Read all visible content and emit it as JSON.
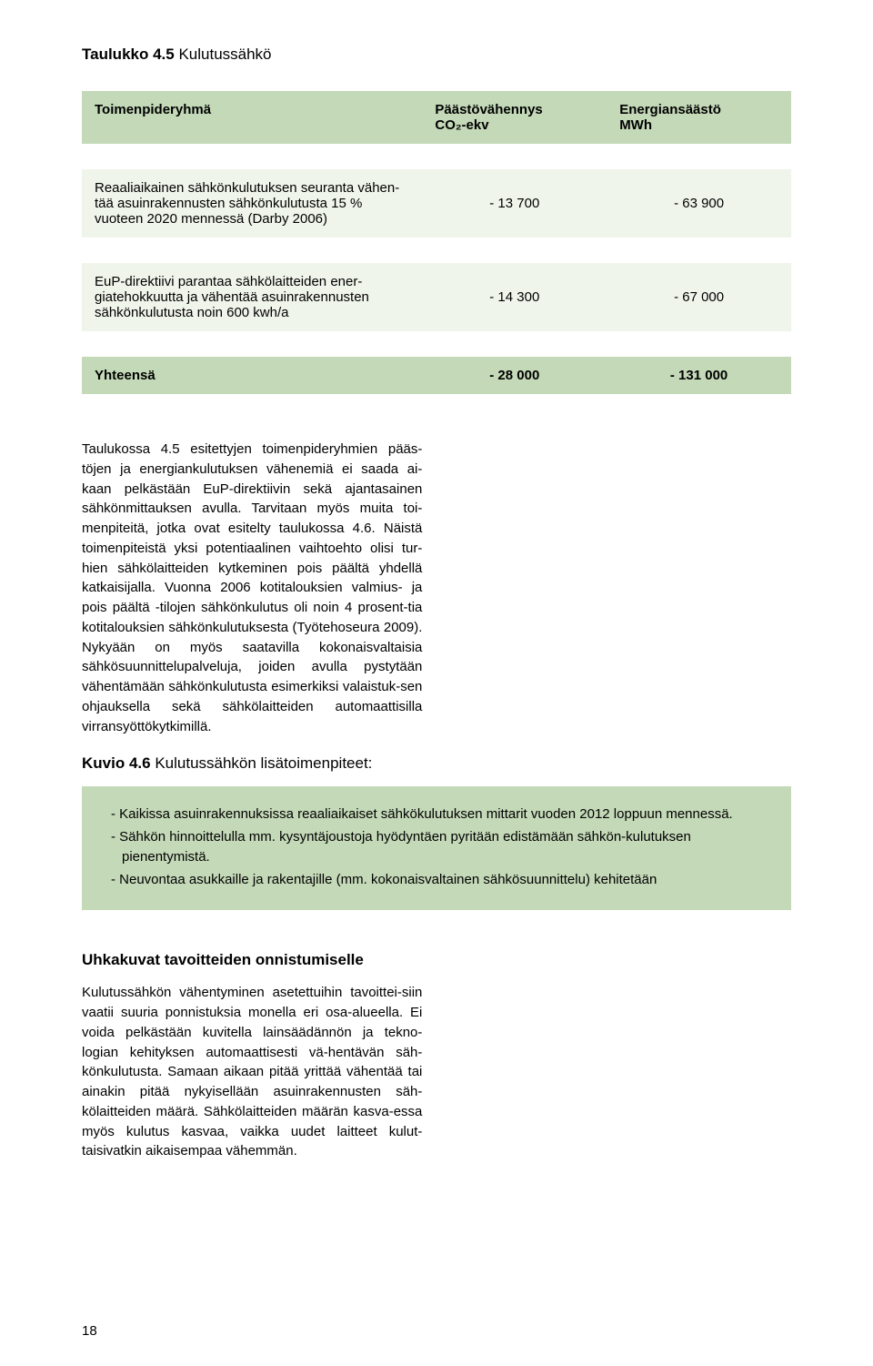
{
  "table_heading": {
    "label": "Taulukko 4.5",
    "title": " Kulutussähkö"
  },
  "columns": [
    "Toimenpideryhmä",
    "Päästövähennys\nCO₂-ekv",
    "Energiansäästö\nMWh"
  ],
  "rows": [
    {
      "label": "Reaaliaikainen sähkönkulutuksen seuranta vähen-tää asuinrakennusten sähkönkulutusta 15 % vuoteen 2020 mennessä (Darby 2006)",
      "c1": "- 13 700",
      "c2": "- 63 900"
    },
    {
      "label": "EuP-direktiivi parantaa sähkölaitteiden ener-giatehokkuutta ja vähentää asuinrakennusten sähkönkulutusta  noin 600 kwh/a",
      "c1": "- 14 300",
      "c2": "- 67 000"
    }
  ],
  "total": {
    "label": "Yhteensä",
    "c1": "- 28 000",
    "c2": "- 131 000"
  },
  "body_para1": "Taulukossa 4.5 esitettyjen toimenpideryhmien pääs-töjen ja energiankulutuksen vähenemiä ei saada ai-kaan pelkästään EuP-direktiivin sekä ajantasainen sähkönmittauksen avulla. Tarvitaan myös muita toi-menpiteitä, jotka ovat esitelty taulukossa 4.6. Näistä toimenpiteistä yksi potentiaalinen vaihtoehto olisi tur-hien sähkölaitteiden kytkeminen pois päältä yhdellä katkaisijalla. Vuonna 2006 kotitalouksien valmius- ja pois päältä -tilojen sähkönkulutus oli noin 4 prosent-tia kotitalouksien sähkönkulutuksesta (Työtehoseura 2009). Nykyään on myös saatavilla kokonaisvaltaisia sähkösuunnittelupalveluja, joiden avulla pystytään vähentämään sähkönkulutusta esimerkiksi valaistuk-sen ohjauksella sekä sähkölaitteiden automaattisilla virransyöttökytkimillä.",
  "kuvio_heading": {
    "label": "Kuvio 4.6",
    "title": " Kulutussähkön lisätoimenpiteet:"
  },
  "actions": [
    "- Kaikissa asuinrakennuksissa reaaliaikaiset sähkökulutuksen mittarit vuoden 2012 loppuun mennessä.",
    "- Sähkön hinnoittelulla mm. kysyntäjoustoja hyödyntäen pyritään edistämään sähkön-kulutuksen pienentymistä.",
    "- Neuvontaa asukkaille ja rakentajille (mm. kokonaisvaltainen sähkösuunnittelu) kehitetään"
  ],
  "sec_heading": "Uhkakuvat tavoitteiden onnistumiselle",
  "body_para2": "Kulutussähkön vähentyminen asetettuihin tavoittei-siin vaatii suuria ponnistuksia monella eri osa-alueella. Ei voida pelkästään kuvitella lainsäädännön ja tekno-logian kehityksen automaattisesti vä-hentävän säh-könkulutusta. Samaan aikaan pitää yrittää vähentää tai ainakin pitää nykyisellään asuinrakennusten säh-kölaitteiden määrä. Sähkölaitteiden määrän kasva-essa myös kulutus kasvaa, vaikka uudet laitteet kulut-taisivatkin aikaisempaa vähemmän.",
  "page_number": "18"
}
